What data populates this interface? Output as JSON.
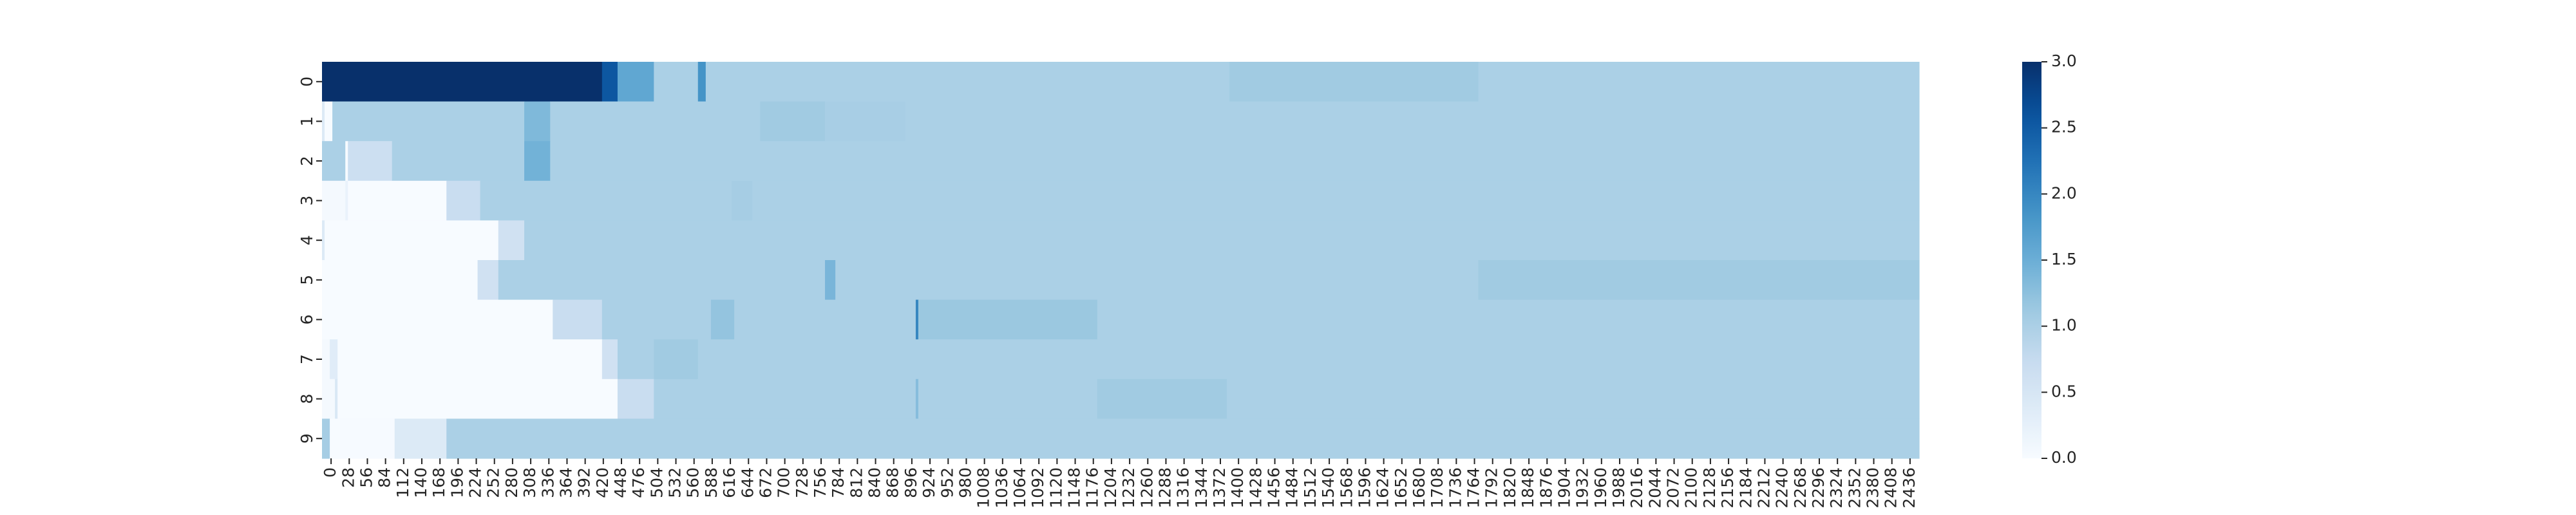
{
  "chart_data": {
    "type": "heatmap",
    "title": "",
    "xlabel": "",
    "ylabel": "",
    "cmap": "Blues",
    "vmin": 0,
    "vmax": 3,
    "x_range": [
      0,
      2464
    ],
    "y_categories": [
      "0",
      "1",
      "2",
      "3",
      "4",
      "5",
      "6",
      "7",
      "8",
      "9"
    ],
    "x_tick_labels": [
      "0",
      "28",
      "56",
      "84",
      "112",
      "140",
      "168",
      "196",
      "224",
      "252",
      "280",
      "308",
      "336",
      "364",
      "392",
      "420",
      "448",
      "476",
      "504",
      "532",
      "560",
      "588",
      "616",
      "644",
      "672",
      "700",
      "728",
      "756",
      "784",
      "812",
      "840",
      "868",
      "896",
      "924",
      "952",
      "980",
      "1008",
      "1036",
      "1064",
      "1092",
      "1120",
      "1148",
      "1176",
      "1204",
      "1232",
      "1260",
      "1288",
      "1316",
      "1344",
      "1372",
      "1400",
      "1428",
      "1456",
      "1484",
      "1512",
      "1540",
      "1568",
      "1596",
      "1624",
      "1652",
      "1680",
      "1708",
      "1736",
      "1764",
      "1792",
      "1820",
      "1848",
      "1876",
      "1904",
      "1932",
      "1960",
      "1988",
      "2016",
      "2044",
      "2072",
      "2100",
      "2128",
      "2156",
      "2184",
      "2212",
      "2240",
      "2268",
      "2296",
      "2324",
      "2352",
      "2380",
      "2408",
      "2436"
    ],
    "colorbar_ticks": [
      "0.0",
      "0.5",
      "1.0",
      "1.5",
      "2.0",
      "2.5",
      "3.0"
    ],
    "rows": [
      [
        [
          0,
          432,
          3.0
        ],
        [
          432,
          456,
          2.55
        ],
        [
          456,
          512,
          1.6
        ],
        [
          512,
          580,
          1.0
        ],
        [
          580,
          592,
          1.85
        ],
        [
          592,
          1400,
          1.0
        ],
        [
          1400,
          1784,
          1.1
        ],
        [
          1784,
          2464,
          1.0
        ]
      ],
      [
        [
          0,
          4,
          0.4
        ],
        [
          4,
          16,
          0.0
        ],
        [
          16,
          312,
          1.0
        ],
        [
          312,
          352,
          1.35
        ],
        [
          352,
          676,
          1.0
        ],
        [
          676,
          776,
          1.1
        ],
        [
          776,
          900,
          1.03
        ],
        [
          900,
          2464,
          1.0
        ]
      ],
      [
        [
          0,
          36,
          1.0
        ],
        [
          36,
          40,
          0.0
        ],
        [
          40,
          108,
          0.65
        ],
        [
          108,
          312,
          1.0
        ],
        [
          312,
          352,
          1.45
        ],
        [
          352,
          2464,
          1.0
        ]
      ],
      [
        [
          0,
          36,
          0.05
        ],
        [
          36,
          40,
          0.2
        ],
        [
          40,
          192,
          0.0
        ],
        [
          192,
          244,
          0.7
        ],
        [
          244,
          632,
          1.0
        ],
        [
          632,
          664,
          1.05
        ],
        [
          664,
          2464,
          1.0
        ]
      ],
      [
        [
          0,
          4,
          0.4
        ],
        [
          4,
          272,
          0.0
        ],
        [
          272,
          312,
          0.6
        ],
        [
          312,
          2464,
          1.0
        ]
      ],
      [
        [
          0,
          240,
          0.0
        ],
        [
          240,
          272,
          0.6
        ],
        [
          272,
          776,
          1.0
        ],
        [
          776,
          792,
          1.4
        ],
        [
          792,
          1784,
          1.0
        ],
        [
          1784,
          2464,
          1.1
        ]
      ],
      [
        [
          0,
          356,
          0.0
        ],
        [
          356,
          432,
          0.7
        ],
        [
          432,
          600,
          1.0
        ],
        [
          600,
          636,
          1.2
        ],
        [
          636,
          916,
          1.0
        ],
        [
          916,
          920,
          2.0
        ],
        [
          920,
          1196,
          1.15
        ],
        [
          1196,
          2464,
          1.0
        ]
      ],
      [
        [
          0,
          12,
          0.05
        ],
        [
          12,
          24,
          0.35
        ],
        [
          24,
          432,
          0.0
        ],
        [
          432,
          456,
          0.6
        ],
        [
          456,
          512,
          1.0
        ],
        [
          512,
          580,
          1.1
        ],
        [
          580,
          2464,
          1.0
        ]
      ],
      [
        [
          0,
          20,
          0.05
        ],
        [
          20,
          24,
          0.45
        ],
        [
          24,
          456,
          0.0
        ],
        [
          456,
          512,
          0.7
        ],
        [
          512,
          916,
          1.0
        ],
        [
          916,
          920,
          1.3
        ],
        [
          920,
          1196,
          1.0
        ],
        [
          1196,
          1396,
          1.1
        ],
        [
          1396,
          2464,
          1.0
        ]
      ],
      [
        [
          0,
          12,
          1.05
        ],
        [
          12,
          28,
          0.0
        ],
        [
          28,
          112,
          0.02
        ],
        [
          112,
          192,
          0.4
        ],
        [
          192,
          2464,
          1.0
        ]
      ]
    ]
  }
}
